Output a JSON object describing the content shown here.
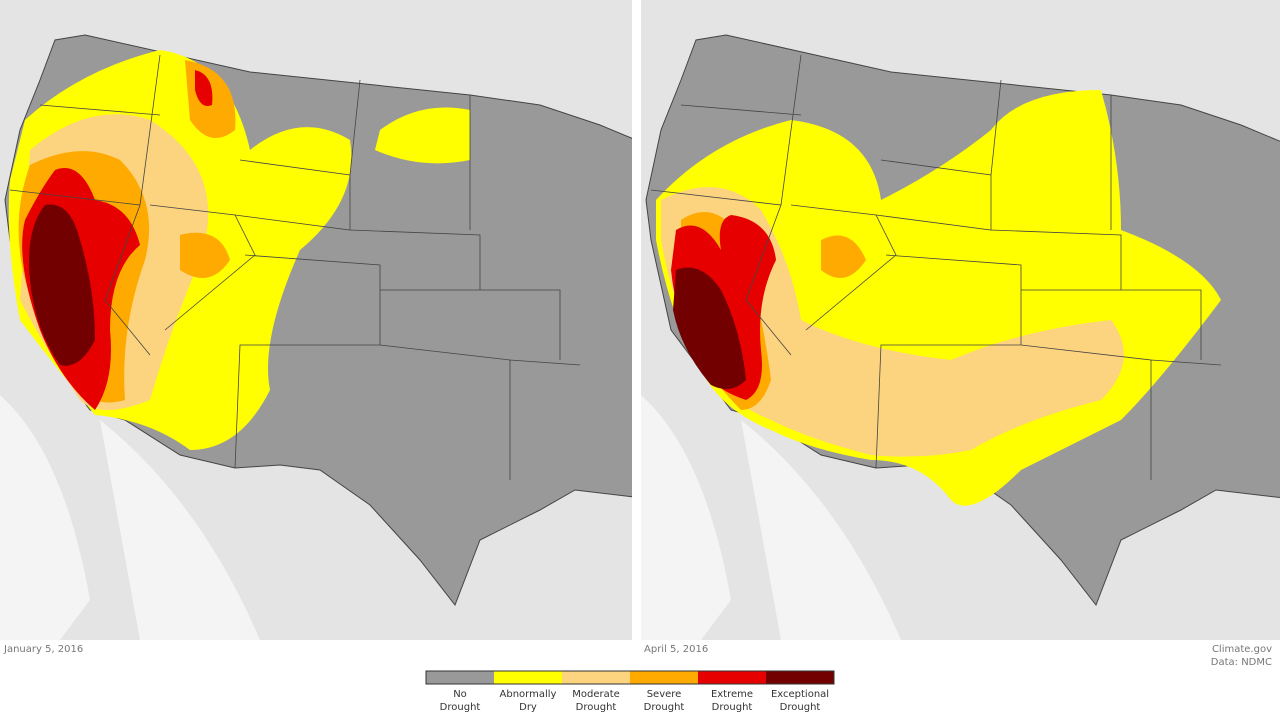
{
  "maps": [
    {
      "date": "January 5, 2016"
    },
    {
      "date": "April 5, 2016"
    }
  ],
  "credit": {
    "source": "Climate.gov",
    "data": "Data: NDMC"
  },
  "legend": [
    {
      "label": "No Drought",
      "color": "#999999"
    },
    {
      "label": "Abnormally Dry",
      "color": "#ffff00"
    },
    {
      "label": "Moderate Drought",
      "color": "#fcd37f"
    },
    {
      "label": "Severe Drought",
      "color": "#ffaa00"
    },
    {
      "label": "Extreme Drought",
      "color": "#e60000"
    },
    {
      "label": "Exceptional Drought",
      "color": "#730000"
    }
  ]
}
